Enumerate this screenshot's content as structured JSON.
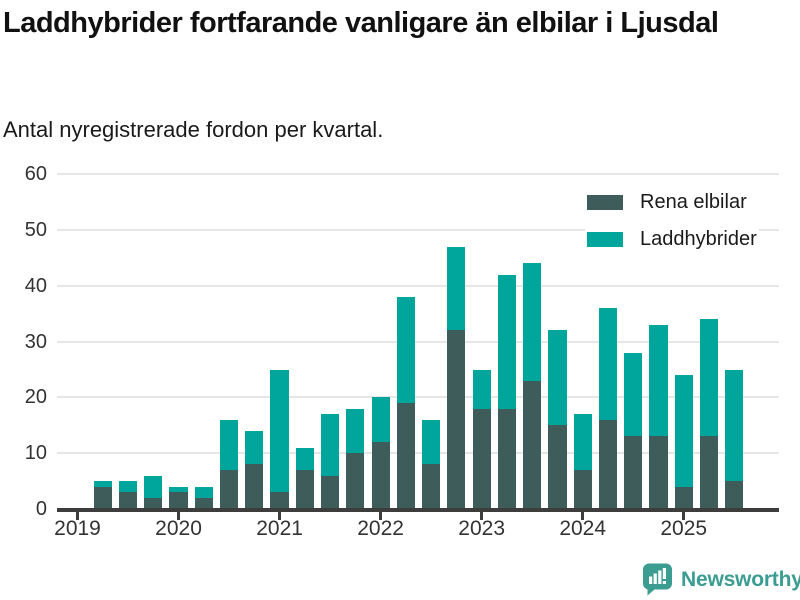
{
  "header": {
    "title": "Laddhybrider fortfarande vanligare än elbilar i Ljusdal",
    "subtitle": "Antal nyregistrerade fordon per kvartal."
  },
  "chart_data": {
    "type": "bar",
    "stacked": true,
    "x": [
      "2019 Q1",
      "2019 Q2",
      "2019 Q3",
      "2019 Q4",
      "2020 Q1",
      "2020 Q2",
      "2020 Q3",
      "2020 Q4",
      "2021 Q1",
      "2021 Q2",
      "2021 Q3",
      "2021 Q4",
      "2022 Q1",
      "2022 Q2",
      "2022 Q3",
      "2022 Q4",
      "2023 Q1",
      "2023 Q2",
      "2023 Q3",
      "2023 Q4",
      "2024 Q1",
      "2024 Q2",
      "2024 Q3",
      "2024 Q4",
      "2025 Q1",
      "2025 Q2",
      "2025 Q3"
    ],
    "series": [
      {
        "name": "Rena elbilar",
        "color": "#3d5c5a",
        "values": [
          0,
          4,
          3,
          2,
          3,
          2,
          7,
          8,
          3,
          7,
          6,
          10,
          12,
          19,
          8,
          32,
          18,
          18,
          23,
          15,
          7,
          16,
          13,
          13,
          4,
          13,
          5
        ]
      },
      {
        "name": "Laddhybrider",
        "color": "#00a69c",
        "values": [
          0,
          1,
          2,
          4,
          1,
          2,
          9,
          6,
          22,
          4,
          11,
          8,
          8,
          19,
          8,
          15,
          7,
          24,
          21,
          17,
          10,
          20,
          15,
          20,
          20,
          21,
          20
        ]
      }
    ],
    "totals": [
      0,
      5,
      5,
      6,
      4,
      4,
      16,
      14,
      25,
      11,
      17,
      18,
      20,
      38,
      16,
      47,
      25,
      42,
      44,
      32,
      17,
      36,
      28,
      33,
      24,
      34,
      25
    ],
    "title": "Laddhybrider fortfarande vanligare än elbilar i Ljusdal",
    "xlabel": "",
    "ylabel": "",
    "ylim": [
      0,
      60
    ],
    "yticks": [
      0,
      10,
      20,
      30,
      40,
      50,
      60
    ],
    "xticks": [
      "2019",
      "2020",
      "2021",
      "2022",
      "2023",
      "2024",
      "2025"
    ],
    "grid": true,
    "legend_position": "top-right"
  },
  "footer": {
    "brand": "Newsworthy"
  },
  "colors": {
    "rena_elbilar": "#3d5c5a",
    "laddhybrider": "#00a69c",
    "brand_teal": "#3b9c92",
    "axis": "#3d3d3d"
  }
}
